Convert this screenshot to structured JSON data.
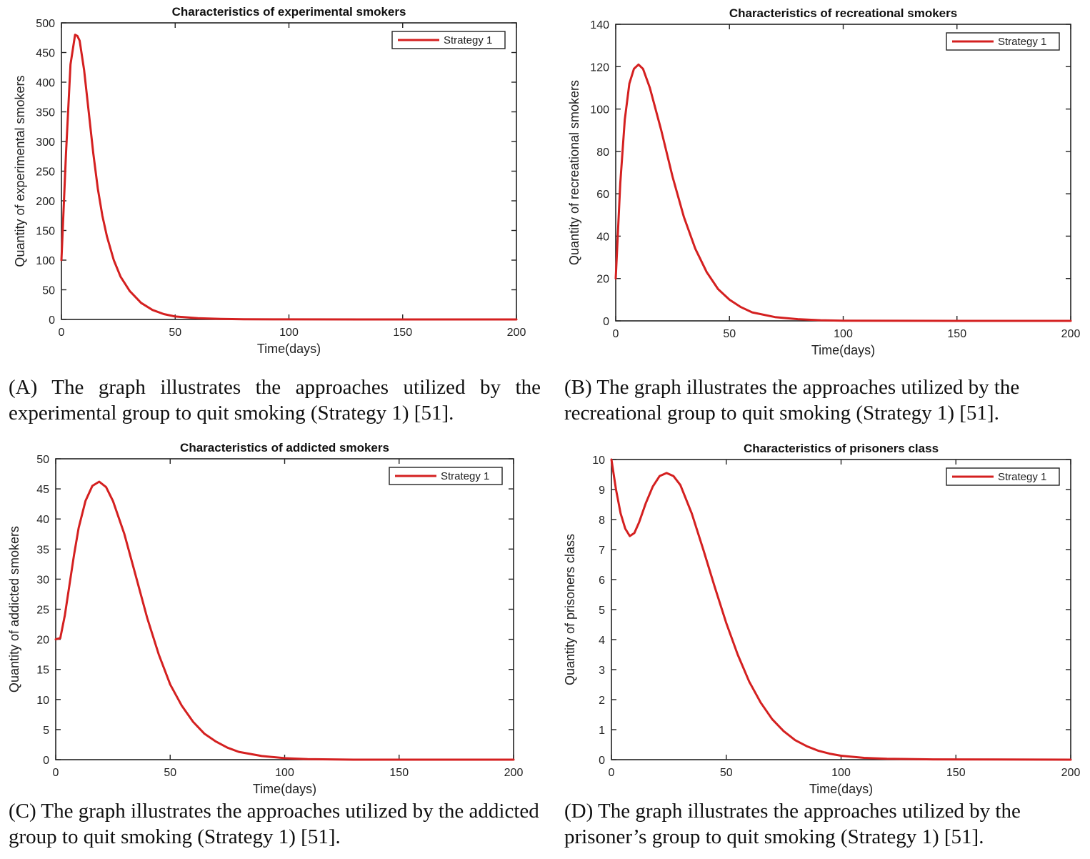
{
  "chart_data": [
    {
      "panel": "A",
      "type": "line",
      "title": "Characteristics of experimental smokers",
      "xlabel": "Time(days)",
      "ylabel": "Quantity of experimental smokers",
      "xlim": [
        0,
        200
      ],
      "ylim": [
        0,
        500
      ],
      "xticks": [
        0,
        50,
        100,
        150,
        200
      ],
      "yticks": [
        0,
        50,
        100,
        150,
        200,
        250,
        300,
        350,
        400,
        450,
        500
      ],
      "legend": "top-right",
      "series": [
        {
          "name": "Strategy 1",
          "color": "#d42020",
          "points": [
            [
              0,
              100
            ],
            [
              2,
              280
            ],
            [
              4,
              430
            ],
            [
              6,
              480
            ],
            [
              7,
              478
            ],
            [
              8,
              470
            ],
            [
              10,
              420
            ],
            [
              12,
              350
            ],
            [
              14,
              280
            ],
            [
              16,
              220
            ],
            [
              18,
              175
            ],
            [
              20,
              140
            ],
            [
              23,
              100
            ],
            [
              26,
              72
            ],
            [
              30,
              48
            ],
            [
              35,
              28
            ],
            [
              40,
              16
            ],
            [
              45,
              9
            ],
            [
              50,
              5
            ],
            [
              60,
              2
            ],
            [
              70,
              1
            ],
            [
              80,
              0.4
            ],
            [
              100,
              0.1
            ],
            [
              150,
              0
            ],
            [
              200,
              0
            ]
          ]
        }
      ]
    },
    {
      "panel": "B",
      "type": "line",
      "title": "Characteristics of recreational smokers",
      "xlabel": "Time(days)",
      "ylabel": "Quantity of recreational smokers",
      "xlim": [
        0,
        200
      ],
      "ylim": [
        0,
        140
      ],
      "xticks": [
        0,
        50,
        100,
        150,
        200
      ],
      "yticks": [
        0,
        20,
        40,
        60,
        80,
        100,
        120,
        140
      ],
      "legend": "top-right",
      "series": [
        {
          "name": "Strategy 1",
          "color": "#d42020",
          "points": [
            [
              0,
              20
            ],
            [
              2,
              65
            ],
            [
              4,
              95
            ],
            [
              6,
              112
            ],
            [
              8,
              119
            ],
            [
              10,
              121
            ],
            [
              12,
              119
            ],
            [
              15,
              110
            ],
            [
              20,
              90
            ],
            [
              25,
              68
            ],
            [
              30,
              49
            ],
            [
              35,
              34
            ],
            [
              40,
              23
            ],
            [
              45,
              15
            ],
            [
              50,
              10
            ],
            [
              55,
              6.5
            ],
            [
              60,
              4
            ],
            [
              70,
              1.8
            ],
            [
              80,
              0.8
            ],
            [
              90,
              0.3
            ],
            [
              100,
              0.1
            ],
            [
              150,
              0
            ],
            [
              200,
              0
            ]
          ]
        }
      ]
    },
    {
      "panel": "C",
      "type": "line",
      "title": "Characteristics of addicted smokers",
      "xlabel": "Time(days)",
      "ylabel": "Quantity of addicted smokers",
      "xlim": [
        0,
        200
      ],
      "ylim": [
        0,
        50
      ],
      "xticks": [
        0,
        50,
        100,
        150,
        200
      ],
      "yticks": [
        0,
        5,
        10,
        15,
        20,
        25,
        30,
        35,
        40,
        45,
        50
      ],
      "legend": "top-right",
      "series": [
        {
          "name": "Strategy 1",
          "color": "#d42020",
          "points": [
            [
              0,
              20
            ],
            [
              2,
              20.2
            ],
            [
              4,
              24
            ],
            [
              6,
              29
            ],
            [
              8,
              34
            ],
            [
              10,
              38.5
            ],
            [
              13,
              43
            ],
            [
              16,
              45.5
            ],
            [
              19,
              46.2
            ],
            [
              22,
              45.3
            ],
            [
              25,
              43
            ],
            [
              30,
              37.5
            ],
            [
              35,
              30.5
            ],
            [
              40,
              23.5
            ],
            [
              45,
              17.5
            ],
            [
              50,
              12.5
            ],
            [
              55,
              9
            ],
            [
              60,
              6.3
            ],
            [
              65,
              4.3
            ],
            [
              70,
              3
            ],
            [
              75,
              2
            ],
            [
              80,
              1.3
            ],
            [
              90,
              0.6
            ],
            [
              100,
              0.25
            ],
            [
              110,
              0.1
            ],
            [
              130,
              0
            ],
            [
              200,
              0
            ]
          ]
        }
      ]
    },
    {
      "panel": "D",
      "type": "line",
      "title": "Characteristics of prisoners class",
      "xlabel": "Time(days)",
      "ylabel": "Quantity of prisoners class",
      "xlim": [
        0,
        200
      ],
      "ylim": [
        0,
        10
      ],
      "xticks": [
        0,
        50,
        100,
        150,
        200
      ],
      "yticks": [
        0,
        1,
        2,
        3,
        4,
        5,
        6,
        7,
        8,
        9,
        10
      ],
      "legend": "top-right",
      "series": [
        {
          "name": "Strategy 1",
          "color": "#d42020",
          "points": [
            [
              0,
              10
            ],
            [
              2,
              9
            ],
            [
              4,
              8.2
            ],
            [
              6,
              7.7
            ],
            [
              8,
              7.45
            ],
            [
              10,
              7.55
            ],
            [
              12,
              7.9
            ],
            [
              15,
              8.55
            ],
            [
              18,
              9.1
            ],
            [
              21,
              9.45
            ],
            [
              24,
              9.55
            ],
            [
              27,
              9.45
            ],
            [
              30,
              9.15
            ],
            [
              35,
              8.2
            ],
            [
              40,
              7
            ],
            [
              45,
              5.75
            ],
            [
              50,
              4.55
            ],
            [
              55,
              3.5
            ],
            [
              60,
              2.6
            ],
            [
              65,
              1.9
            ],
            [
              70,
              1.35
            ],
            [
              75,
              0.95
            ],
            [
              80,
              0.65
            ],
            [
              85,
              0.45
            ],
            [
              90,
              0.3
            ],
            [
              95,
              0.2
            ],
            [
              100,
              0.13
            ],
            [
              110,
              0.06
            ],
            [
              120,
              0.03
            ],
            [
              140,
              0.01
            ],
            [
              200,
              0
            ]
          ]
        }
      ]
    }
  ],
  "captions": [
    "(A) The graph illustrates the approaches utilized by the experimental group to quit smoking (Strategy 1) [51].",
    "(B) The graph illustrates the approaches utilized by the recreational group to quit smoking (Strategy 1) [51].",
    "(C) The graph illustrates the approaches utilized by the addicted group to quit smoking (Strategy 1) [51].",
    "(D) The graph illustrates the approaches utilized by the prisoner’s group to quit smoking (Strategy 1) [51]."
  ]
}
